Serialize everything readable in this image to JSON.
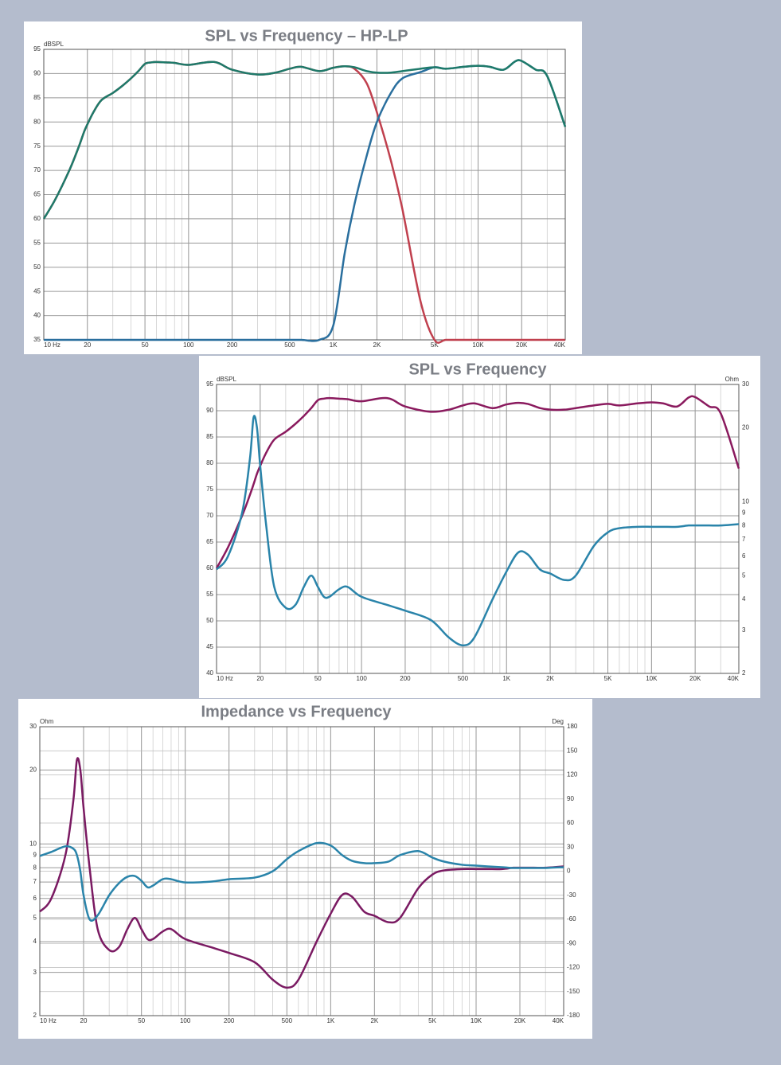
{
  "chart_data": [
    {
      "type": "line",
      "title": "SPL vs Frequency – HP-LP",
      "y_label": "dBSPL",
      "x": [
        10,
        12,
        15,
        17,
        18,
        19,
        20,
        22,
        25,
        30,
        35,
        40,
        45,
        50,
        55,
        60,
        70,
        80,
        100,
        150,
        200,
        300,
        400,
        500,
        600,
        800,
        1000,
        1200,
        1400,
        1700,
        2000,
        2500,
        3000,
        4000,
        5000,
        6000,
        8000,
        10000,
        12000,
        15000,
        18000,
        20000,
        25000,
        30000,
        40000
      ],
      "xlim": [
        10,
        40000
      ],
      "x_log": true,
      "xticks": [
        {
          "value": 10,
          "label": "10 Hz"
        },
        20,
        50,
        100,
        200,
        500,
        {
          "value": 1000,
          "label": "1K"
        },
        {
          "value": 2000,
          "label": "2K"
        },
        {
          "value": 5000,
          "label": "5K"
        },
        {
          "value": 10000,
          "label": "10K"
        },
        {
          "value": 20000,
          "label": "20K"
        },
        {
          "value": 40000,
          "label": "40K"
        }
      ],
      "ylim": [
        35,
        95
      ],
      "yticks": [
        35,
        40,
        45,
        50,
        55,
        60,
        65,
        70,
        75,
        80,
        85,
        90,
        95
      ],
      "grid": true,
      "series": [
        {
          "color": "#c0404e",
          "values": [
            60,
            64,
            70,
            74,
            76,
            78,
            79.5,
            82,
            84.5,
            86,
            87.5,
            89,
            90.5,
            92,
            92.3,
            92.4,
            92.3,
            92.2,
            91.8,
            92.4,
            90.8,
            89.8,
            90.2,
            91,
            91.4,
            90.5,
            91.2,
            91.5,
            91,
            88,
            82,
            72,
            62,
            43,
            35,
            35,
            35,
            35,
            35,
            35,
            35,
            35,
            35,
            35,
            35
          ]
        },
        {
          "color": "#2a6f9e",
          "values": [
            35,
            35,
            35,
            35,
            35,
            35,
            35,
            35,
            35,
            35,
            35,
            35,
            35,
            35,
            35,
            35,
            35,
            35,
            35,
            35,
            35,
            35,
            35,
            35,
            35,
            35,
            38,
            53,
            63,
            73,
            80,
            86,
            89,
            90.3,
            91.3,
            91,
            91.4,
            91.6,
            91.4,
            90.8,
            92.5,
            92.6,
            90.8,
            89.5,
            79
          ]
        },
        {
          "color": "#1e7a6a",
          "values": [
            60,
            64,
            70,
            74,
            76,
            78,
            79.5,
            82,
            84.5,
            86,
            87.5,
            89,
            90.5,
            92,
            92.3,
            92.4,
            92.3,
            92.2,
            91.8,
            92.4,
            90.8,
            89.8,
            90.2,
            91,
            91.4,
            90.5,
            91.2,
            91.5,
            91.3,
            90.5,
            90.2,
            90.2,
            90.5,
            91,
            91.3,
            91,
            91.4,
            91.6,
            91.4,
            90.8,
            92.5,
            92.6,
            90.8,
            89.5,
            79
          ]
        }
      ]
    },
    {
      "type": "line",
      "title": "SPL vs Frequency",
      "y_label": "dBSPL",
      "y2_label": "Ohm",
      "x": [
        10,
        12,
        15,
        17,
        18,
        19,
        20,
        22,
        25,
        30,
        35,
        40,
        45,
        50,
        55,
        60,
        70,
        80,
        100,
        150,
        200,
        300,
        400,
        500,
        600,
        800,
        1000,
        1200,
        1400,
        1700,
        2000,
        2500,
        3000,
        4000,
        5000,
        6000,
        8000,
        10000,
        12000,
        15000,
        18000,
        20000,
        25000,
        30000,
        40000
      ],
      "xlim": [
        10,
        40000
      ],
      "x_log": true,
      "xticks": [
        {
          "value": 10,
          "label": "10 Hz"
        },
        20,
        50,
        100,
        200,
        500,
        {
          "value": 1000,
          "label": "1K"
        },
        {
          "value": 2000,
          "label": "2K"
        },
        {
          "value": 5000,
          "label": "5K"
        },
        {
          "value": 10000,
          "label": "10K"
        },
        {
          "value": 20000,
          "label": "20K"
        },
        {
          "value": 40000,
          "label": "40K"
        }
      ],
      "ylim": [
        40,
        95
      ],
      "yticks": [
        40,
        45,
        50,
        55,
        60,
        65,
        70,
        75,
        80,
        85,
        90,
        95
      ],
      "y2lim": [
        2,
        30
      ],
      "y2_log": true,
      "y2ticks": [
        2,
        3,
        4,
        5,
        6,
        7,
        8,
        9,
        10,
        20,
        30
      ],
      "grid": true,
      "series": [
        {
          "color": "#8a1a5e",
          "values": [
            60,
            64,
            70,
            74,
            76,
            78,
            79.5,
            82,
            84.5,
            86,
            87.5,
            89,
            90.5,
            92,
            92.3,
            92.4,
            92.3,
            92.2,
            91.8,
            92.4,
            90.8,
            89.8,
            90.2,
            91,
            91.4,
            90.5,
            91.2,
            91.5,
            91.3,
            90.5,
            90.2,
            90.2,
            90.5,
            91,
            91.3,
            91,
            91.4,
            91.6,
            91.4,
            90.8,
            92.5,
            92.6,
            90.8,
            89.5,
            79
          ]
        },
        {
          "color": "#2a84aa",
          "axis": "y2",
          "values": [
            5.3,
            6,
            9,
            15,
            22,
            20,
            14,
            8,
            4.5,
            3.7,
            3.8,
            4.5,
            5,
            4.5,
            4.1,
            4.1,
            4.4,
            4.5,
            4.1,
            3.8,
            3.6,
            3.3,
            2.8,
            2.6,
            2.8,
            4,
            5.2,
            6.2,
            6.1,
            5.3,
            5.1,
            4.8,
            5,
            6.6,
            7.5,
            7.8,
            7.9,
            7.9,
            7.9,
            7.9,
            8,
            8,
            8,
            8,
            8.1
          ]
        }
      ]
    },
    {
      "type": "line",
      "title": "Impedance vs Frequency",
      "y_label": "Ohm",
      "y2_label": "Deg",
      "x": [
        10,
        12,
        15,
        17,
        18,
        19,
        20,
        22,
        25,
        30,
        35,
        40,
        45,
        50,
        55,
        60,
        70,
        80,
        100,
        150,
        200,
        300,
        400,
        500,
        600,
        800,
        1000,
        1200,
        1400,
        1700,
        2000,
        2500,
        3000,
        4000,
        5000,
        6000,
        8000,
        10000,
        12000,
        15000,
        18000,
        20000,
        25000,
        30000,
        40000
      ],
      "xlim": [
        10,
        40000
      ],
      "x_log": true,
      "xticks": [
        {
          "value": 10,
          "label": "10 Hz"
        },
        20,
        50,
        100,
        200,
        500,
        {
          "value": 1000,
          "label": "1K"
        },
        {
          "value": 2000,
          "label": "2K"
        },
        {
          "value": 5000,
          "label": "5K"
        },
        {
          "value": 10000,
          "label": "10K"
        },
        {
          "value": 20000,
          "label": "20K"
        },
        {
          "value": 40000,
          "label": "40K"
        }
      ],
      "ylim": [
        2,
        30
      ],
      "y_log": true,
      "yticks": [
        2,
        3,
        4,
        5,
        6,
        7,
        8,
        9,
        10,
        20,
        30
      ],
      "y2lim": [
        -180,
        180
      ],
      "y2ticks": [
        -180,
        -150,
        -120,
        -90,
        -60,
        -30,
        0,
        30,
        60,
        90,
        120,
        150,
        180
      ],
      "grid": true,
      "series": [
        {
          "color": "#7a1a62",
          "values": [
            5.3,
            6,
            9,
            15,
            22,
            20,
            14,
            8,
            4.5,
            3.7,
            3.8,
            4.5,
            5,
            4.5,
            4.1,
            4.1,
            4.4,
            4.5,
            4.1,
            3.8,
            3.6,
            3.3,
            2.8,
            2.6,
            2.8,
            4,
            5.2,
            6.2,
            6.1,
            5.3,
            5.1,
            4.8,
            5,
            6.6,
            7.5,
            7.8,
            7.9,
            7.9,
            7.9,
            7.9,
            8,
            8,
            8,
            8,
            8.1
          ]
        },
        {
          "color": "#2a84aa",
          "axis": "y2",
          "values": [
            19,
            24,
            31,
            28,
            20,
            0,
            -30,
            -60,
            -55,
            -30,
            -15,
            -7,
            -6,
            -12,
            -20,
            -18,
            -10,
            -10,
            -14,
            -13,
            -10,
            -8,
            0,
            15,
            25,
            35,
            32,
            20,
            13,
            10,
            10,
            12,
            20,
            25,
            17,
            12,
            8,
            7,
            6,
            5,
            4,
            4,
            4,
            4,
            5
          ]
        }
      ]
    }
  ]
}
